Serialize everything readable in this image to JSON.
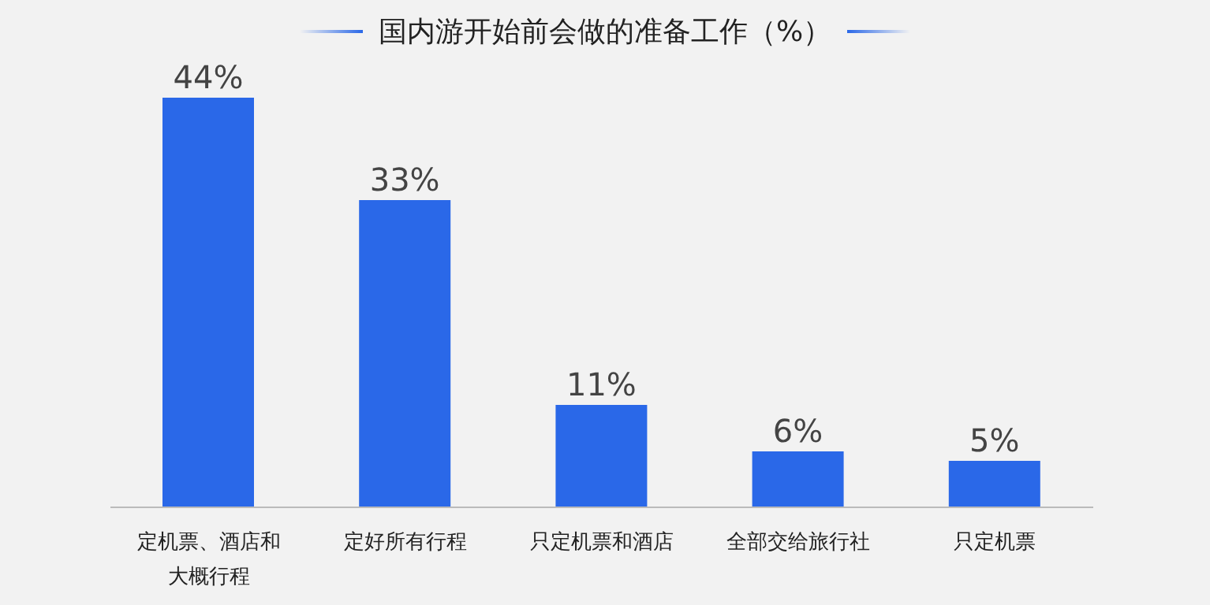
{
  "chart_data": {
    "type": "bar",
    "title": "国内游开始前会做的准备工作（%）",
    "categories": [
      "定机票、酒店和大概行程",
      "定好所有行程",
      "只定机票和酒店",
      "全部交给旅行社",
      "只定机票"
    ],
    "values": [
      44,
      33,
      11,
      6,
      5
    ],
    "value_labels": [
      "44%",
      "33%",
      "11%",
      "6%",
      "5%"
    ],
    "color": "#2a68e8",
    "grid": false,
    "legend": false
  }
}
